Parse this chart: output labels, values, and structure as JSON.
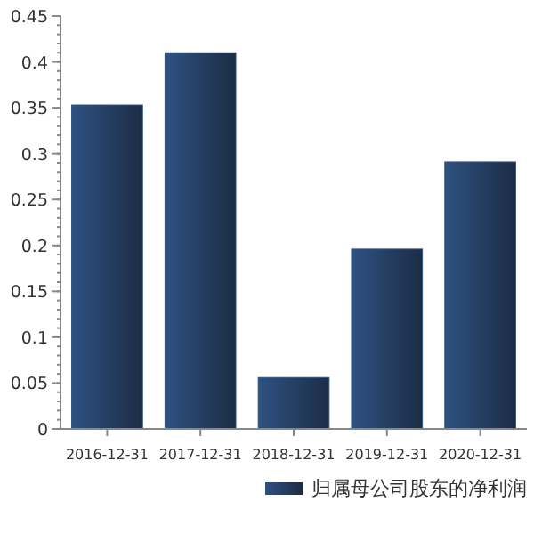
{
  "chart_data": {
    "type": "bar",
    "categories": [
      "2016-12-31",
      "2017-12-31",
      "2018-12-31",
      "2019-12-31",
      "2020-12-31"
    ],
    "series": [
      {
        "name": "归属母公司股东的净利润",
        "color": "#2e5282",
        "values": [
          0.353,
          0.41,
          0.056,
          0.196,
          0.291
        ]
      }
    ],
    "ylim": [
      0,
      0.45
    ],
    "yticks": [
      {
        "value": 0,
        "label": "0"
      },
      {
        "value": 0.05,
        "label": "0.05"
      },
      {
        "value": 0.1,
        "label": "0.1"
      },
      {
        "value": 0.15,
        "label": "0.15"
      },
      {
        "value": 0.2,
        "label": "0.2"
      },
      {
        "value": 0.25,
        "label": "0.25"
      },
      {
        "value": 0.3,
        "label": "0.3"
      },
      {
        "value": 0.35,
        "label": "0.35"
      },
      {
        "value": 0.4,
        "label": "0.4"
      },
      {
        "value": 0.45,
        "label": "0.45"
      }
    ],
    "grid": false,
    "legend": "bottom right"
  }
}
